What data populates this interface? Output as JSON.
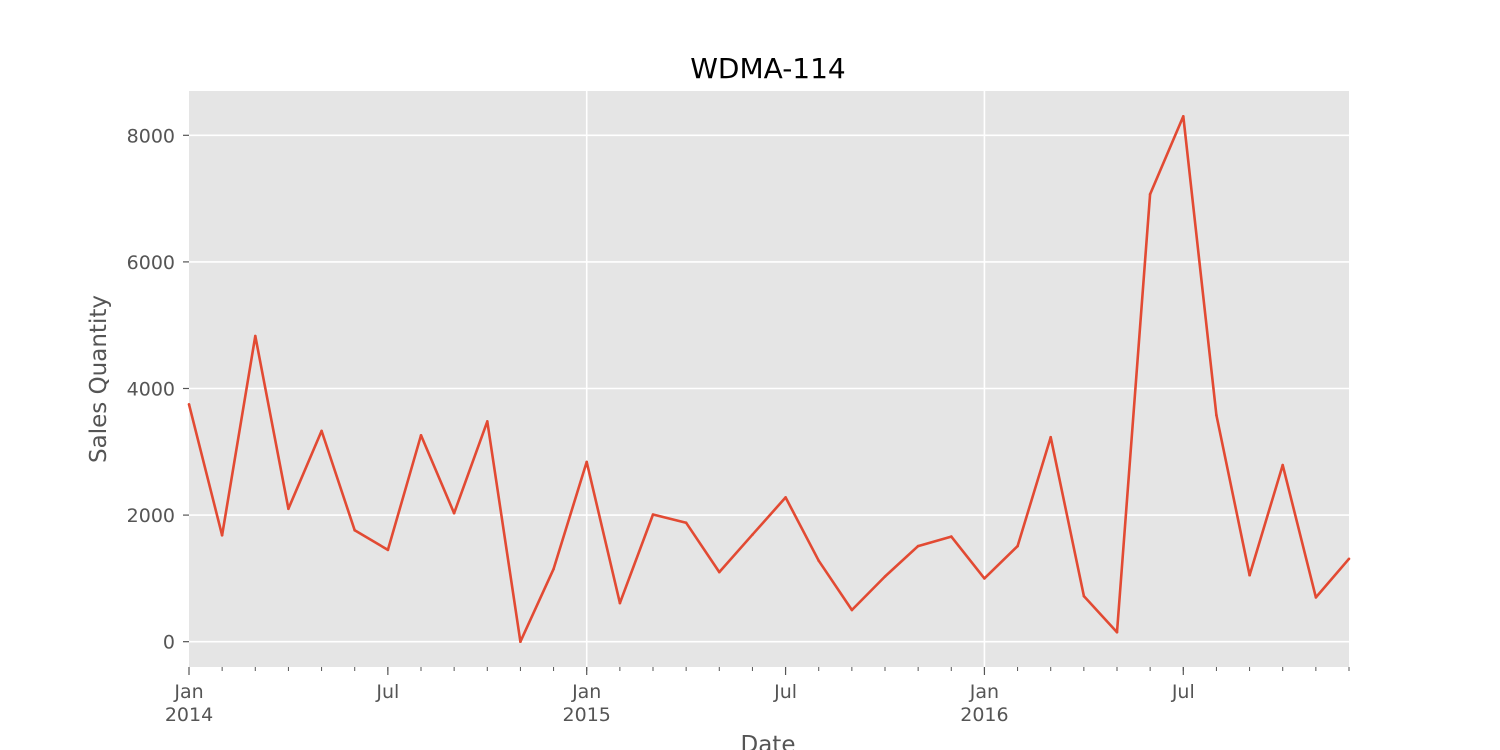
{
  "chart_data": {
    "type": "line",
    "title": "WDMA-114",
    "xlabel": "Date",
    "ylabel": "Sales Quantity",
    "grid": true,
    "colors": {
      "plot_background": "#e5e5e5",
      "grid": "#ffffff",
      "line": "#e24a33",
      "tick_text": "#555555"
    },
    "x_range": [
      "2014-01",
      "2016-12"
    ],
    "ylim": [
      -400,
      8700
    ],
    "y_ticks": [
      0,
      2000,
      4000,
      6000,
      8000
    ],
    "y_tick_labels": [
      "0",
      "2000",
      "4000",
      "6000",
      "8000"
    ],
    "x_ticks": [
      {
        "date": "2014-01",
        "label": "Jan",
        "year": "2014",
        "gridline": false
      },
      {
        "date": "2014-07",
        "label": "Jul",
        "year": "",
        "gridline": false
      },
      {
        "date": "2015-01",
        "label": "Jan",
        "year": "2015",
        "gridline": true
      },
      {
        "date": "2015-07",
        "label": "Jul",
        "year": "",
        "gridline": false
      },
      {
        "date": "2016-01",
        "label": "Jan",
        "year": "2016",
        "gridline": true
      },
      {
        "date": "2016-07",
        "label": "Jul",
        "year": "",
        "gridline": false
      }
    ],
    "x": [
      "2014-01",
      "2014-02",
      "2014-03",
      "2014-04",
      "2014-05",
      "2014-06",
      "2014-07",
      "2014-08",
      "2014-09",
      "2014-10",
      "2014-11",
      "2014-12",
      "2015-01",
      "2015-02",
      "2015-03",
      "2015-04",
      "2015-05",
      "2015-06",
      "2015-07",
      "2015-08",
      "2015-09",
      "2015-10",
      "2015-11",
      "2015-12",
      "2016-01",
      "2016-02",
      "2016-03",
      "2016-04",
      "2016-05",
      "2016-06",
      "2016-07",
      "2016-08",
      "2016-09",
      "2016-10",
      "2016-11",
      "2016-12"
    ],
    "values": [
      3750,
      1680,
      4830,
      2100,
      3330,
      1760,
      1450,
      3260,
      2030,
      3480,
      0,
      1150,
      2840,
      610,
      2010,
      1880,
      1100,
      1690,
      2280,
      1280,
      500,
      1030,
      1510,
      1660,
      1000,
      1510,
      3230,
      720,
      150,
      7070,
      8300,
      3580,
      1050,
      2790,
      700,
      1310
    ]
  }
}
